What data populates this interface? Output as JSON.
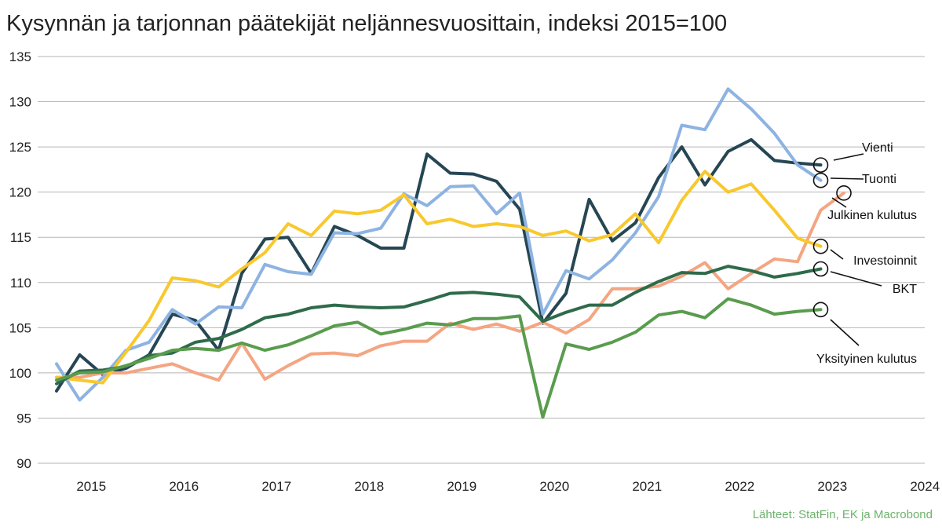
{
  "title": "Kysynnän ja tarjonnan päätekijät neljännesvuosittain, indeksi 2015=100",
  "source": "Lähteet: StatFin, EK ja Macrobond",
  "colors": {
    "source": "#6db36b",
    "grid": "#b5b5b5",
    "text": "#222222"
  },
  "chart_data": {
    "type": "line",
    "title": "Kysynnän ja tarjonnan päätekijät neljännesvuosittain, indeksi 2015=100",
    "xlabel": "",
    "ylabel": "",
    "ylim": [
      90,
      135
    ],
    "yticks": [
      90,
      95,
      100,
      105,
      110,
      115,
      120,
      125,
      130,
      135
    ],
    "xlim": [
      2015,
      2024.75
    ],
    "xticks": [
      "2015",
      "2016",
      "2017",
      "2018",
      "2019",
      "2020",
      "2021",
      "2022",
      "2023",
      "2024"
    ],
    "grid": true,
    "legend": "end-of-line labels (right)",
    "x": [
      "2015Q1",
      "2015Q2",
      "2015Q3",
      "2015Q4",
      "2016Q1",
      "2016Q2",
      "2016Q3",
      "2016Q4",
      "2017Q1",
      "2017Q2",
      "2017Q3",
      "2017Q4",
      "2018Q1",
      "2018Q2",
      "2018Q3",
      "2018Q4",
      "2019Q1",
      "2019Q2",
      "2019Q3",
      "2019Q4",
      "2020Q1",
      "2020Q2",
      "2020Q3",
      "2020Q4",
      "2021Q1",
      "2021Q2",
      "2021Q3",
      "2021Q4",
      "2022Q1",
      "2022Q2",
      "2022Q3",
      "2022Q4",
      "2023Q1",
      "2023Q2",
      "2023Q3",
      "2023Q4",
      "2024Q1",
      "2024Q2",
      "2024Q3",
      "2024Q4"
    ],
    "series": [
      {
        "name": "Vienti",
        "color": "#264653",
        "values": [
          98.0,
          102.0,
          99.8,
          100.5,
          102.0,
          106.5,
          105.8,
          102.5,
          111.0,
          114.8,
          115.0,
          111.0,
          116.2,
          115.2,
          113.8,
          113.8,
          124.2,
          122.1,
          122.0,
          121.2,
          118.1,
          105.5,
          108.8,
          119.2,
          114.6,
          116.6,
          121.6,
          125.0,
          120.8,
          124.5,
          125.8,
          123.5,
          123.2,
          123.0,
          null,
          null,
          null,
          null,
          null,
          null
        ]
      },
      {
        "name": "Tuonti",
        "color": "#8db3e2",
        "values": [
          101.0,
          97.0,
          99.5,
          102.5,
          103.4,
          107.0,
          105.4,
          107.3,
          107.2,
          112.0,
          111.2,
          110.9,
          115.5,
          115.4,
          116.0,
          119.8,
          118.5,
          120.6,
          120.7,
          117.6,
          119.9,
          106.5,
          111.3,
          110.4,
          112.5,
          115.5,
          119.5,
          127.4,
          126.9,
          131.4,
          129.2,
          126.5,
          123.0,
          121.3,
          null,
          null,
          null,
          null,
          null,
          null
        ]
      },
      {
        "name": "Julkinen kulutus",
        "color": "#f4a582",
        "values": [
          99.5,
          99.5,
          100.0,
          100.0,
          100.5,
          101.0,
          100.0,
          99.2,
          103.3,
          99.3,
          100.8,
          102.1,
          102.2,
          101.9,
          103.0,
          103.5,
          103.5,
          105.5,
          104.8,
          105.4,
          104.6,
          105.6,
          104.4,
          105.9,
          109.3,
          109.3,
          109.6,
          110.7,
          112.2,
          109.3,
          111.0,
          112.6,
          112.3,
          118.0,
          119.9,
          null,
          null,
          null,
          null,
          null
        ]
      },
      {
        "name": "Investoinnit",
        "color": "#f8c82d",
        "values": [
          99.5,
          99.2,
          98.9,
          102.3,
          105.8,
          110.5,
          110.2,
          109.5,
          111.5,
          113.3,
          116.5,
          115.2,
          117.9,
          117.6,
          118.0,
          119.7,
          116.5,
          117.0,
          116.2,
          116.5,
          116.2,
          115.2,
          115.7,
          114.6,
          115.3,
          117.6,
          114.4,
          119.1,
          122.3,
          120.0,
          120.9,
          118.0,
          114.9,
          114.0,
          null,
          null,
          null,
          null,
          null,
          null
        ]
      },
      {
        "name": "BKT",
        "color": "#2e6b4a",
        "values": [
          98.8,
          100.2,
          100.3,
          100.7,
          101.9,
          102.2,
          103.4,
          103.8,
          104.8,
          106.1,
          106.5,
          107.2,
          107.5,
          107.3,
          107.2,
          107.3,
          108.0,
          108.8,
          108.9,
          108.7,
          108.4,
          105.7,
          106.7,
          107.5,
          107.5,
          108.9,
          110.1,
          111.1,
          111.0,
          111.8,
          111.3,
          110.6,
          111.0,
          111.5,
          null,
          null,
          null,
          null,
          null,
          null
        ]
      },
      {
        "name": "Yksityinen kulutus",
        "color": "#5a9c4e",
        "values": [
          99.2,
          100.0,
          100.1,
          100.8,
          101.6,
          102.5,
          102.7,
          102.5,
          103.3,
          102.5,
          103.1,
          104.1,
          105.2,
          105.6,
          104.3,
          104.8,
          105.5,
          105.3,
          106.0,
          106.0,
          106.3,
          95.1,
          103.2,
          102.6,
          103.4,
          104.5,
          106.4,
          106.8,
          106.1,
          108.2,
          107.5,
          106.5,
          106.8,
          107.0,
          null,
          null,
          null,
          null,
          null,
          null
        ]
      }
    ],
    "end_labels": [
      "Vienti",
      "Tuonti",
      "Julkinen kulutus",
      "Investoinnit",
      "BKT",
      "Yksityinen kulutus"
    ]
  }
}
